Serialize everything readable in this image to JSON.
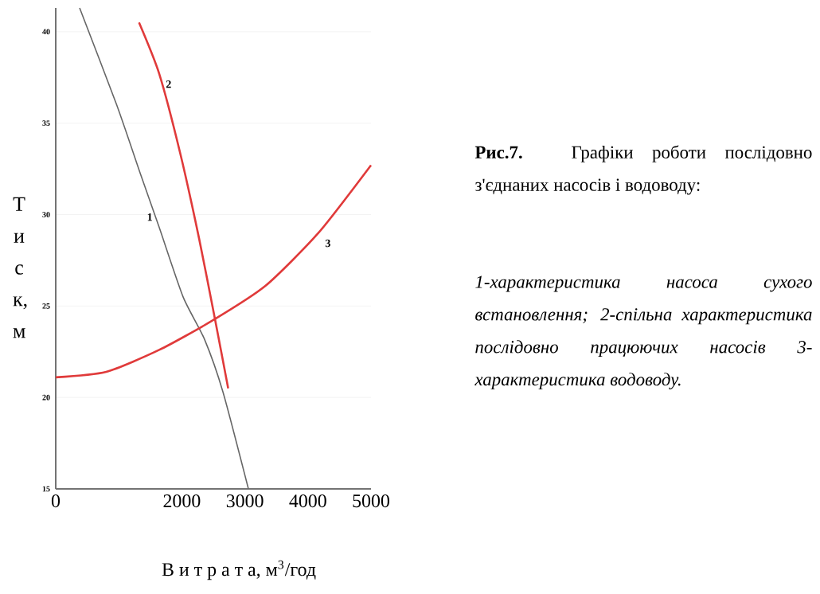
{
  "chart_data": {
    "type": "line",
    "xlabel": "В и т р а т а, м$^{3}$/год",
    "ylabel": "Т и с к, м",
    "xlim": [
      0,
      5000
    ],
    "ylim": [
      15,
      41.3
    ],
    "xticks": [
      0,
      2000,
      3000,
      4000,
      5000
    ],
    "yticks": [
      15,
      20,
      25,
      30,
      35,
      40
    ],
    "grid": "y",
    "marker": "none",
    "line_style": "solid",
    "series": [
      {
        "color": "#666666",
        "x": [
          379,
          967,
          1346,
          1641,
          2020,
          2357,
          2652,
          3056
        ],
        "values": [
          41.3,
          36.0,
          32.2,
          29.3,
          25.5,
          23.2,
          20.3,
          15.0
        ]
      },
      {
        "color": "#e03a3a",
        "x": [
          1321,
          1641,
          1978,
          2273,
          2525,
          2735
        ],
        "values": [
          40.5,
          37.7,
          33.3,
          28.7,
          24.3,
          20.5
        ]
      },
      {
        "color": "#e03a3a",
        "x": [
          0,
          800,
          1641,
          2483,
          3325,
          4167,
          5000
        ],
        "values": [
          21.1,
          21.4,
          22.6,
          24.2,
          26.1,
          29.0,
          32.7
        ]
      }
    ],
    "annotations": [
      "1",
      "2",
      "3",
      "**Рис.7.** Графіки роботи послідовно з'єднаних насосів і водоводу:",
      "1-характеристика насоса сухого встановлення; 2-спільна характеристика послідовно працюючих насосів 3-характеристика водоводу."
    ]
  }
}
